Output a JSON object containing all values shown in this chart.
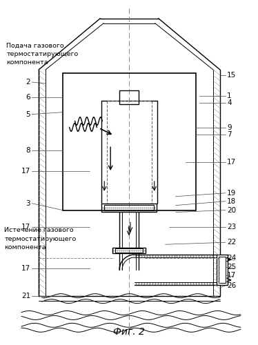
{
  "title": "Фиг. 2",
  "bg_color": "#ffffff",
  "line_color": "#000000",
  "label_top_left": "Подача газового\nтермостатирующего\nкомпонента",
  "label_bottom_left": "Истечение газового\nтермостатирующего\nкомпонента",
  "figsize": [
    3.74,
    5.0
  ],
  "dpi": 100
}
